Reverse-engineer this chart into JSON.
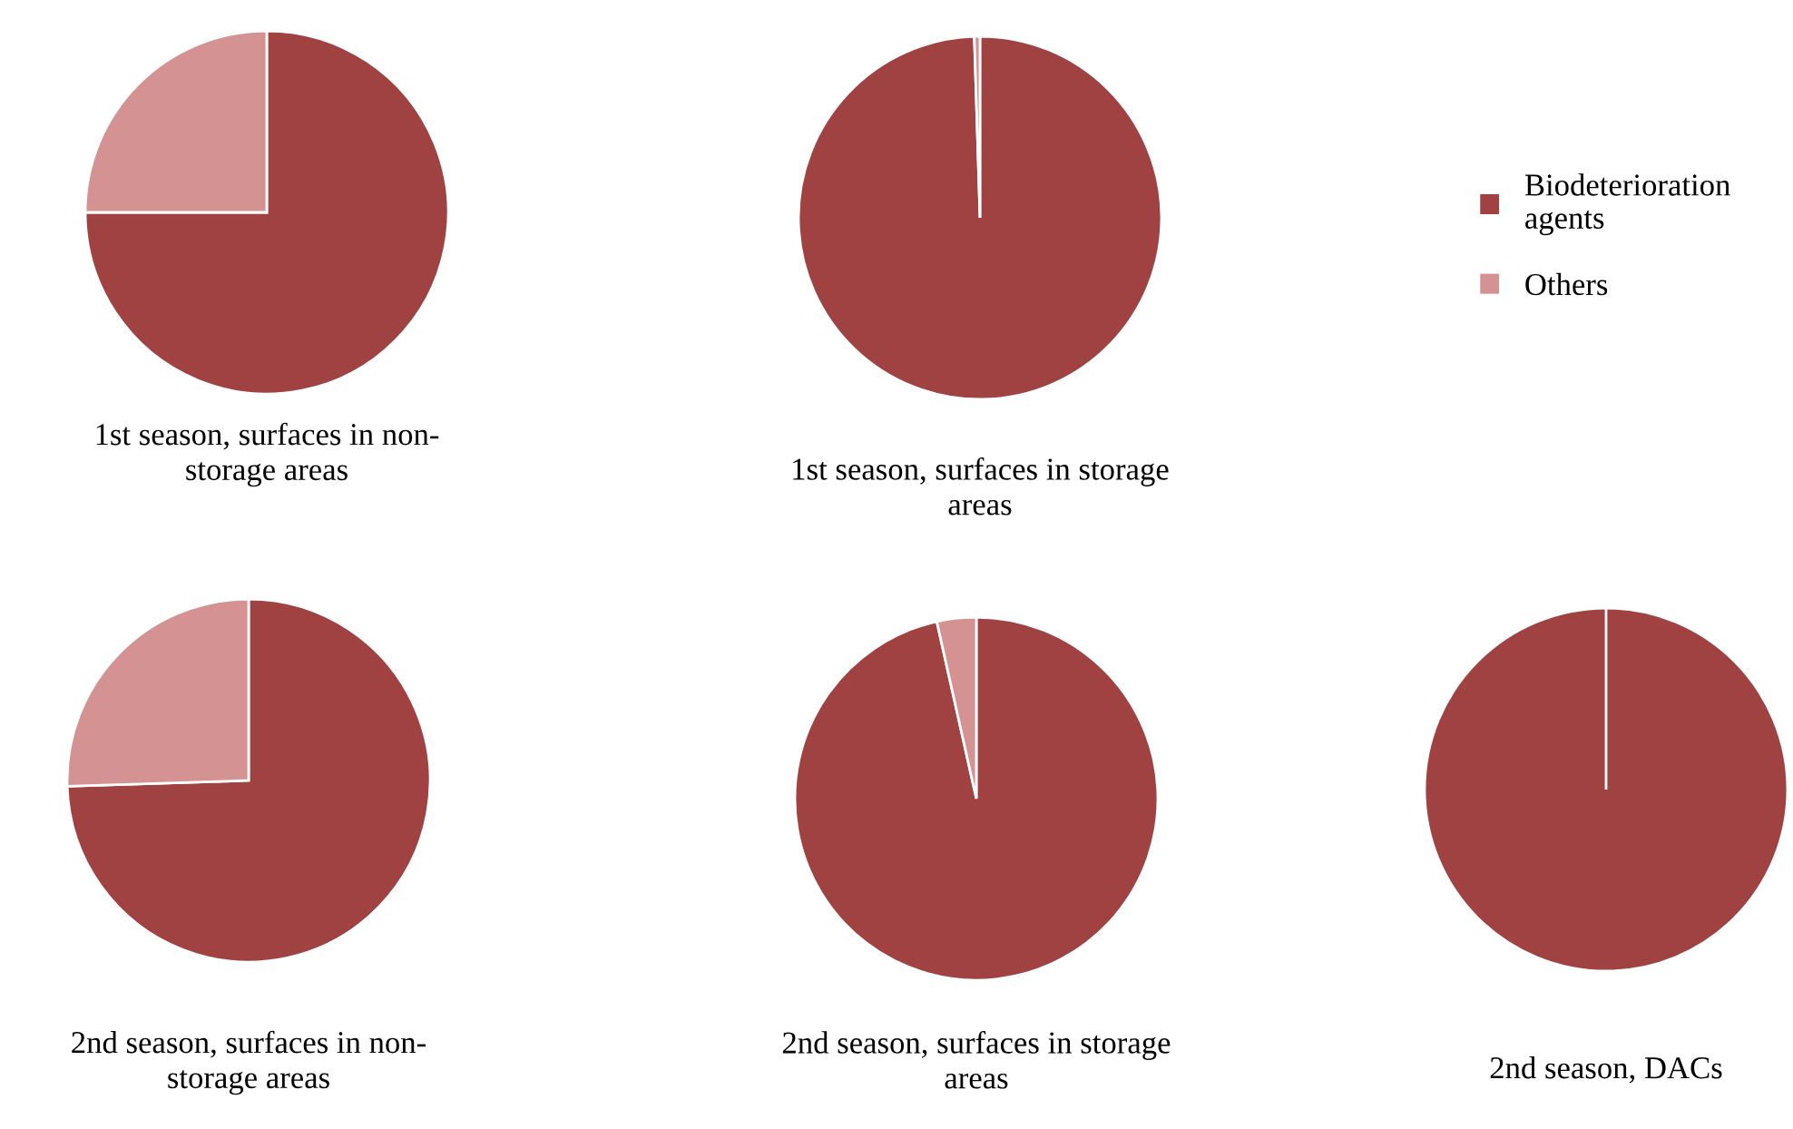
{
  "chart_data": [
    {
      "type": "pie",
      "title": "1st season, surfaces in non-\nstorage areas",
      "categories": [
        "Biodeterioration\nagents",
        "Others"
      ],
      "values": [
        75,
        25
      ],
      "colors": [
        "#a04241",
        "#d49392"
      ],
      "legend": "right"
    },
    {
      "type": "pie",
      "title": "1st season, surfaces in storage\nareas",
      "categories": [
        null,
        null
      ],
      "values": [
        99.5,
        0.5
      ],
      "colors": [
        "#a04241",
        "#d49392"
      ]
    },
    {
      "type": "pie",
      "title": "2nd season, surfaces in non-\nstorage areas",
      "categories": [
        null,
        null
      ],
      "values": [
        74.5,
        25.5
      ],
      "colors": [
        "#a04241",
        "#d49392"
      ]
    },
    {
      "type": "pie",
      "title": "2nd season, surfaces in storage\nareas",
      "categories": [
        null,
        null
      ],
      "values": [
        96.5,
        3.5
      ],
      "colors": [
        "#a04241",
        "#d49392"
      ]
    },
    {
      "type": "pie",
      "title": "2nd season, DACs",
      "categories": [
        null,
        null
      ],
      "values": [
        100,
        0
      ],
      "colors": [
        "#a04241",
        "#d49392"
      ]
    }
  ]
}
